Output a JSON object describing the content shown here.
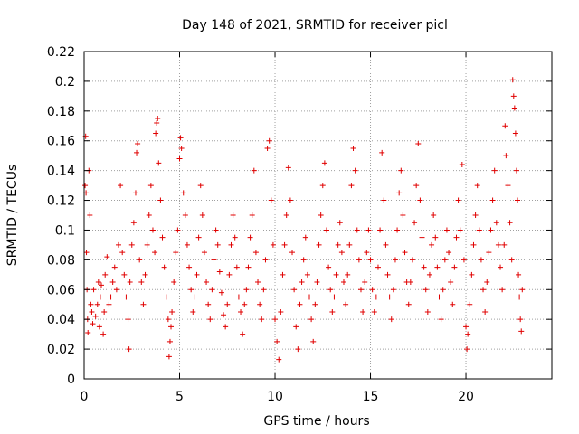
{
  "chart_data": {
    "type": "scatter",
    "title": "Day 148 of 2021, SRMTID for receiver picl",
    "xlabel": "GPS time / hours",
    "ylabel": "SRMTID / TECUs",
    "xlim": [
      0,
      24.5
    ],
    "ylim": [
      0,
      0.22
    ],
    "xticks": [
      0,
      5,
      10,
      15,
      20
    ],
    "yticks": [
      0,
      0.02,
      0.04,
      0.06,
      0.08,
      0.1,
      0.12,
      0.14,
      0.16,
      0.18,
      0.2,
      0.22
    ],
    "grid": true,
    "marker": "+",
    "color": "#e00000",
    "series": [
      {
        "points": [
          [
            0.05,
            0.13
          ],
          [
            0.08,
            0.163
          ],
          [
            0.1,
            0.125
          ],
          [
            0.12,
            0.085
          ],
          [
            0.15,
            0.06
          ],
          [
            0.18,
            0.04
          ],
          [
            0.2,
            0.031
          ],
          [
            0.25,
            0.14
          ],
          [
            0.3,
            0.11
          ],
          [
            0.35,
            0.05
          ],
          [
            0.4,
            0.045
          ],
          [
            0.45,
            0.037
          ],
          [
            0.5,
            0.06
          ],
          [
            0.6,
            0.042
          ],
          [
            0.7,
            0.05
          ],
          [
            0.75,
            0.065
          ],
          [
            0.8,
            0.035
          ],
          [
            0.85,
            0.055
          ],
          [
            0.9,
            0.063
          ],
          [
            1.0,
            0.03
          ],
          [
            1.05,
            0.045
          ],
          [
            1.1,
            0.07
          ],
          [
            1.2,
            0.082
          ],
          [
            1.3,
            0.05
          ],
          [
            1.4,
            0.055
          ],
          [
            1.5,
            0.065
          ],
          [
            1.6,
            0.075
          ],
          [
            1.7,
            0.06
          ],
          [
            1.8,
            0.09
          ],
          [
            1.9,
            0.13
          ],
          [
            2.0,
            0.085
          ],
          [
            2.1,
            0.07
          ],
          [
            2.2,
            0.055
          ],
          [
            2.3,
            0.04
          ],
          [
            2.35,
            0.02
          ],
          [
            2.4,
            0.065
          ],
          [
            2.5,
            0.09
          ],
          [
            2.6,
            0.105
          ],
          [
            2.7,
            0.125
          ],
          [
            2.75,
            0.152
          ],
          [
            2.8,
            0.158
          ],
          [
            2.9,
            0.08
          ],
          [
            3.0,
            0.065
          ],
          [
            3.1,
            0.05
          ],
          [
            3.2,
            0.07
          ],
          [
            3.3,
            0.09
          ],
          [
            3.4,
            0.11
          ],
          [
            3.5,
            0.13
          ],
          [
            3.6,
            0.1
          ],
          [
            3.7,
            0.085
          ],
          [
            3.75,
            0.165
          ],
          [
            3.8,
            0.172
          ],
          [
            3.85,
            0.175
          ],
          [
            3.9,
            0.145
          ],
          [
            4.0,
            0.12
          ],
          [
            4.1,
            0.095
          ],
          [
            4.2,
            0.075
          ],
          [
            4.3,
            0.055
          ],
          [
            4.4,
            0.04
          ],
          [
            4.45,
            0.015
          ],
          [
            4.5,
            0.025
          ],
          [
            4.55,
            0.035
          ],
          [
            4.6,
            0.045
          ],
          [
            4.7,
            0.065
          ],
          [
            4.8,
            0.085
          ],
          [
            4.9,
            0.1
          ],
          [
            5.0,
            0.148
          ],
          [
            5.05,
            0.162
          ],
          [
            5.1,
            0.155
          ],
          [
            5.2,
            0.125
          ],
          [
            5.3,
            0.11
          ],
          [
            5.4,
            0.09
          ],
          [
            5.5,
            0.075
          ],
          [
            5.6,
            0.06
          ],
          [
            5.7,
            0.045
          ],
          [
            5.8,
            0.055
          ],
          [
            5.9,
            0.07
          ],
          [
            6.0,
            0.095
          ],
          [
            6.1,
            0.13
          ],
          [
            6.2,
            0.11
          ],
          [
            6.3,
            0.085
          ],
          [
            6.4,
            0.065
          ],
          [
            6.5,
            0.05
          ],
          [
            6.6,
            0.04
          ],
          [
            6.7,
            0.06
          ],
          [
            6.8,
            0.08
          ],
          [
            6.9,
            0.1
          ],
          [
            7.0,
            0.09
          ],
          [
            7.1,
            0.072
          ],
          [
            7.2,
            0.058
          ],
          [
            7.3,
            0.043
          ],
          [
            7.4,
            0.035
          ],
          [
            7.5,
            0.05
          ],
          [
            7.6,
            0.07
          ],
          [
            7.7,
            0.09
          ],
          [
            7.8,
            0.11
          ],
          [
            7.9,
            0.095
          ],
          [
            8.0,
            0.075
          ],
          [
            8.1,
            0.055
          ],
          [
            8.2,
            0.045
          ],
          [
            8.3,
            0.03
          ],
          [
            8.4,
            0.05
          ],
          [
            8.5,
            0.06
          ],
          [
            8.6,
            0.075
          ],
          [
            8.7,
            0.095
          ],
          [
            8.8,
            0.11
          ],
          [
            8.9,
            0.14
          ],
          [
            9.0,
            0.085
          ],
          [
            9.1,
            0.065
          ],
          [
            9.2,
            0.05
          ],
          [
            9.3,
            0.04
          ],
          [
            9.4,
            0.06
          ],
          [
            9.5,
            0.08
          ],
          [
            9.6,
            0.155
          ],
          [
            9.7,
            0.16
          ],
          [
            9.8,
            0.12
          ],
          [
            9.9,
            0.09
          ],
          [
            10.0,
            0.04
          ],
          [
            10.1,
            0.025
          ],
          [
            10.2,
            0.013
          ],
          [
            10.3,
            0.045
          ],
          [
            10.4,
            0.07
          ],
          [
            10.5,
            0.09
          ],
          [
            10.6,
            0.11
          ],
          [
            10.7,
            0.142
          ],
          [
            10.8,
            0.12
          ],
          [
            10.9,
            0.085
          ],
          [
            11.0,
            0.06
          ],
          [
            11.1,
            0.035
          ],
          [
            11.2,
            0.02
          ],
          [
            11.3,
            0.05
          ],
          [
            11.4,
            0.065
          ],
          [
            11.5,
            0.08
          ],
          [
            11.6,
            0.095
          ],
          [
            11.7,
            0.07
          ],
          [
            11.8,
            0.055
          ],
          [
            11.9,
            0.04
          ],
          [
            12.0,
            0.025
          ],
          [
            12.1,
            0.05
          ],
          [
            12.2,
            0.065
          ],
          [
            12.3,
            0.09
          ],
          [
            12.4,
            0.11
          ],
          [
            12.5,
            0.13
          ],
          [
            12.6,
            0.145
          ],
          [
            12.7,
            0.1
          ],
          [
            12.8,
            0.075
          ],
          [
            12.9,
            0.06
          ],
          [
            13.0,
            0.045
          ],
          [
            13.1,
            0.055
          ],
          [
            13.2,
            0.07
          ],
          [
            13.3,
            0.09
          ],
          [
            13.4,
            0.105
          ],
          [
            13.5,
            0.085
          ],
          [
            13.6,
            0.065
          ],
          [
            13.7,
            0.05
          ],
          [
            13.8,
            0.07
          ],
          [
            13.9,
            0.09
          ],
          [
            14.0,
            0.13
          ],
          [
            14.1,
            0.155
          ],
          [
            14.2,
            0.14
          ],
          [
            14.3,
            0.1
          ],
          [
            14.4,
            0.08
          ],
          [
            14.5,
            0.06
          ],
          [
            14.6,
            0.045
          ],
          [
            14.7,
            0.065
          ],
          [
            14.8,
            0.085
          ],
          [
            14.9,
            0.1
          ],
          [
            15.0,
            0.08
          ],
          [
            15.1,
            0.06
          ],
          [
            15.2,
            0.045
          ],
          [
            15.3,
            0.055
          ],
          [
            15.4,
            0.075
          ],
          [
            15.5,
            0.1
          ],
          [
            15.6,
            0.152
          ],
          [
            15.7,
            0.12
          ],
          [
            15.8,
            0.09
          ],
          [
            15.9,
            0.07
          ],
          [
            16.0,
            0.055
          ],
          [
            16.1,
            0.04
          ],
          [
            16.2,
            0.06
          ],
          [
            16.3,
            0.08
          ],
          [
            16.4,
            0.1
          ],
          [
            16.5,
            0.125
          ],
          [
            16.6,
            0.14
          ],
          [
            16.7,
            0.11
          ],
          [
            16.8,
            0.085
          ],
          [
            16.9,
            0.065
          ],
          [
            17.0,
            0.05
          ],
          [
            17.1,
            0.065
          ],
          [
            17.2,
            0.08
          ],
          [
            17.3,
            0.105
          ],
          [
            17.4,
            0.13
          ],
          [
            17.5,
            0.158
          ],
          [
            17.6,
            0.12
          ],
          [
            17.7,
            0.095
          ],
          [
            17.8,
            0.075
          ],
          [
            17.9,
            0.06
          ],
          [
            18.0,
            0.045
          ],
          [
            18.1,
            0.07
          ],
          [
            18.2,
            0.09
          ],
          [
            18.3,
            0.11
          ],
          [
            18.4,
            0.095
          ],
          [
            18.5,
            0.075
          ],
          [
            18.6,
            0.055
          ],
          [
            18.7,
            0.04
          ],
          [
            18.8,
            0.06
          ],
          [
            18.9,
            0.08
          ],
          [
            19.0,
            0.1
          ],
          [
            19.1,
            0.085
          ],
          [
            19.2,
            0.065
          ],
          [
            19.3,
            0.05
          ],
          [
            19.4,
            0.075
          ],
          [
            19.5,
            0.095
          ],
          [
            19.6,
            0.12
          ],
          [
            19.7,
            0.1
          ],
          [
            19.8,
            0.144
          ],
          [
            19.9,
            0.08
          ],
          [
            20.0,
            0.035
          ],
          [
            20.05,
            0.02
          ],
          [
            20.1,
            0.03
          ],
          [
            20.2,
            0.05
          ],
          [
            20.3,
            0.07
          ],
          [
            20.4,
            0.09
          ],
          [
            20.5,
            0.11
          ],
          [
            20.6,
            0.13
          ],
          [
            20.7,
            0.1
          ],
          [
            20.8,
            0.08
          ],
          [
            20.9,
            0.06
          ],
          [
            21.0,
            0.045
          ],
          [
            21.1,
            0.065
          ],
          [
            21.2,
            0.085
          ],
          [
            21.3,
            0.1
          ],
          [
            21.4,
            0.12
          ],
          [
            21.5,
            0.14
          ],
          [
            21.6,
            0.105
          ],
          [
            21.7,
            0.09
          ],
          [
            21.8,
            0.075
          ],
          [
            21.9,
            0.06
          ],
          [
            22.0,
            0.09
          ],
          [
            22.05,
            0.17
          ],
          [
            22.1,
            0.15
          ],
          [
            22.2,
            0.13
          ],
          [
            22.3,
            0.105
          ],
          [
            22.4,
            0.08
          ],
          [
            22.45,
            0.201
          ],
          [
            22.5,
            0.19
          ],
          [
            22.55,
            0.182
          ],
          [
            22.6,
            0.165
          ],
          [
            22.65,
            0.14
          ],
          [
            22.7,
            0.12
          ],
          [
            22.75,
            0.07
          ],
          [
            22.8,
            0.055
          ],
          [
            22.85,
            0.04
          ],
          [
            22.9,
            0.032
          ],
          [
            22.95,
            0.06
          ]
        ]
      }
    ]
  }
}
